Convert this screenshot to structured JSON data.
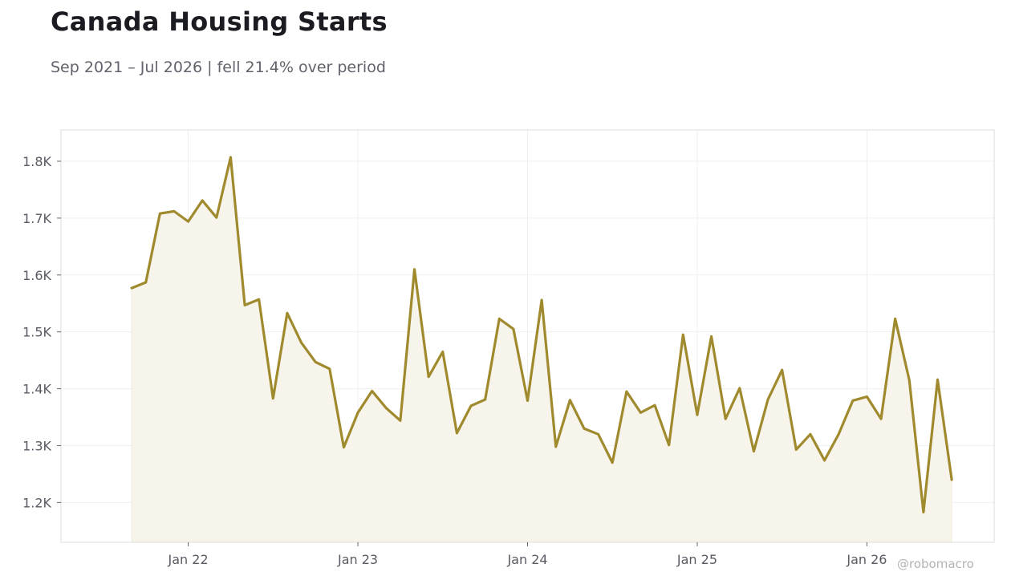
{
  "chart_data": {
    "type": "area",
    "title": "Canada Housing Starts",
    "subtitle": "Sep 2021 – Jul 2026 | fell 21.4% over period",
    "xlabel": "",
    "ylabel": "",
    "series_color": "#a08a2e",
    "fill_color": "#f7f4ec",
    "grid": true,
    "x_ticks": [
      {
        "label": "Jan 22",
        "date": "2022-01"
      },
      {
        "label": "Jan 23",
        "date": "2023-01"
      },
      {
        "label": "Jan 24",
        "date": "2024-01"
      },
      {
        "label": "Jan 25",
        "date": "2025-01"
      },
      {
        "label": "Jan 26",
        "date": "2026-01"
      }
    ],
    "y_ticks": [
      {
        "label": "1.2K",
        "value": 1200
      },
      {
        "label": "1.3K",
        "value": 1300
      },
      {
        "label": "1.4K",
        "value": 1400
      },
      {
        "label": "1.5K",
        "value": 1500
      },
      {
        "label": "1.6K",
        "value": 1600
      },
      {
        "label": "1.7K",
        "value": 1700
      },
      {
        "label": "1.8K",
        "value": 1800
      }
    ],
    "ylim": [
      1130,
      1855
    ],
    "xlim": [
      "2021-04",
      "2026-10"
    ],
    "x": [
      "2021-09",
      "2021-10",
      "2021-11",
      "2021-12",
      "2022-01",
      "2022-02",
      "2022-03",
      "2022-04",
      "2022-05",
      "2022-06",
      "2022-07",
      "2022-08",
      "2022-09",
      "2022-10",
      "2022-11",
      "2022-12",
      "2023-01",
      "2023-02",
      "2023-03",
      "2023-04",
      "2023-05",
      "2023-06",
      "2023-07",
      "2023-08",
      "2023-09",
      "2023-10",
      "2023-11",
      "2023-12",
      "2024-01",
      "2024-02",
      "2024-03",
      "2024-04",
      "2024-05",
      "2024-06",
      "2024-07",
      "2024-08",
      "2024-09",
      "2024-10",
      "2024-11",
      "2024-12",
      "2025-01",
      "2025-02",
      "2025-03",
      "2025-04",
      "2025-05",
      "2025-06",
      "2025-07",
      "2025-08",
      "2025-09",
      "2025-10",
      "2025-11",
      "2025-12",
      "2026-01",
      "2026-02",
      "2026-03",
      "2026-04",
      "2026-05",
      "2026-06",
      "2026-07"
    ],
    "values": [
      1577,
      1587,
      1708,
      1712,
      1694,
      1731,
      1701,
      1807,
      1547,
      1557,
      1383,
      1533,
      1481,
      1447,
      1435,
      1297,
      1358,
      1396,
      1366,
      1344,
      1610,
      1421,
      1465,
      1322,
      1370,
      1381,
      1523,
      1505,
      1379,
      1556,
      1298,
      1380,
      1330,
      1320,
      1270,
      1395,
      1358,
      1371,
      1301,
      1495,
      1354,
      1492,
      1347,
      1401,
      1290,
      1381,
      1433,
      1293,
      1320,
      1274,
      1320,
      1379,
      1386,
      1347,
      1523,
      1415,
      1183,
      1416,
      1240
    ]
  },
  "watermark": "@robomacro"
}
